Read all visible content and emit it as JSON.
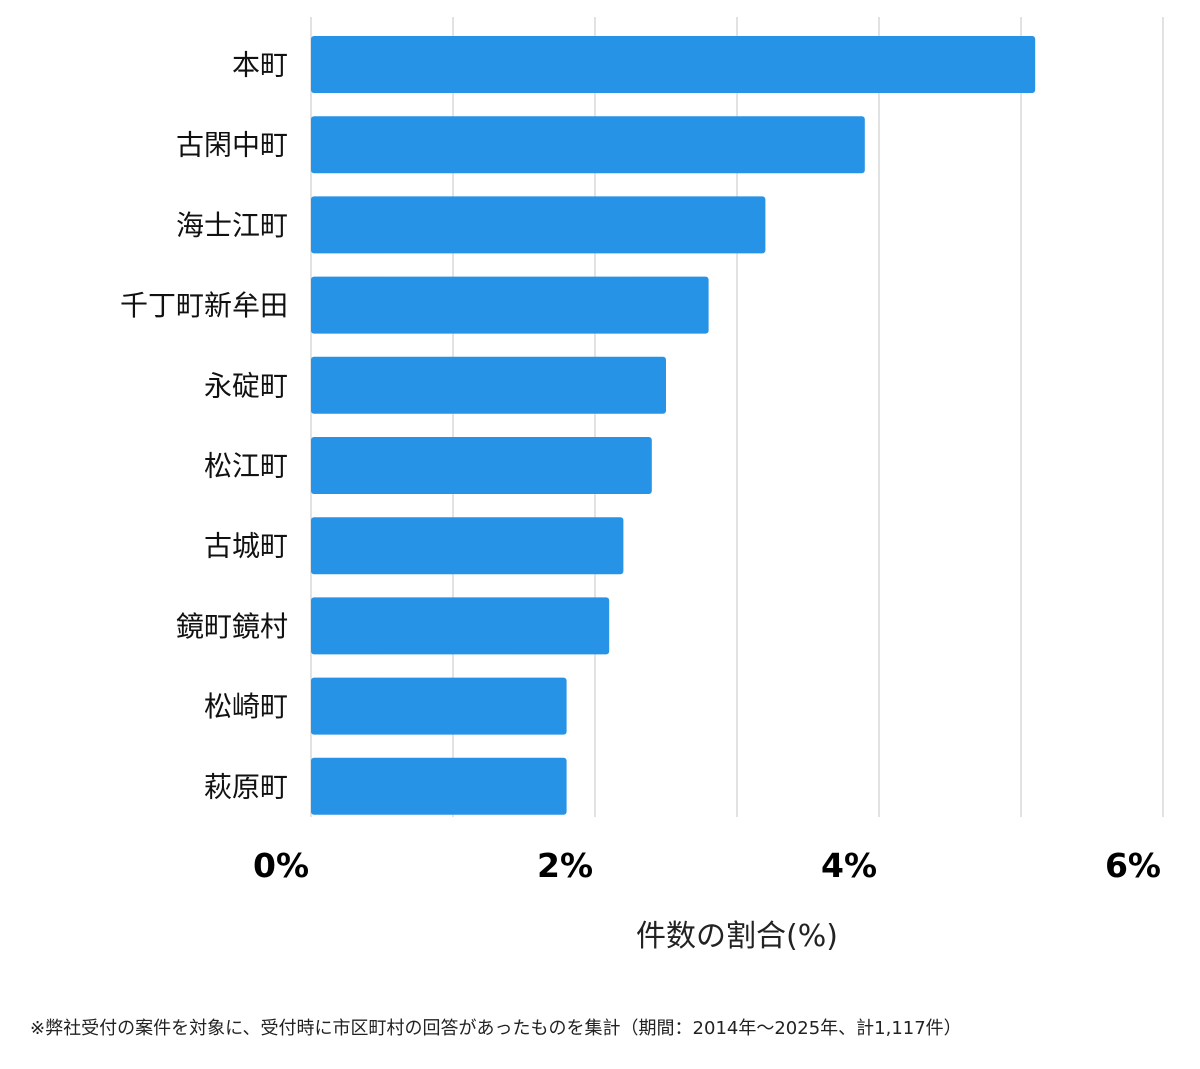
{
  "chart_data": {
    "type": "bar",
    "orientation": "horizontal",
    "categories": [
      "本町",
      "古閑中町",
      "海士江町",
      "千丁町新牟田",
      "永碇町",
      "松江町",
      "古城町",
      "鏡町鏡村",
      "松崎町",
      "萩原町"
    ],
    "values": [
      5.1,
      3.9,
      3.2,
      2.8,
      2.5,
      2.4,
      2.2,
      2.1,
      1.8,
      1.8
    ],
    "xlim": [
      0,
      6
    ],
    "xticks": [
      0,
      2,
      4,
      6
    ],
    "xtick_labels": [
      "0%",
      "2%",
      "4%",
      "6%"
    ],
    "xlabel": "件数の割合(%)",
    "grid": true,
    "bar_color": "#2693e6",
    "grid_color": "#d9d9d9"
  },
  "footnote": "※弊社受付の案件を対象に、受付時に市区町村の回答があったものを集計（期間：2014年～2025年、計1,117件）"
}
